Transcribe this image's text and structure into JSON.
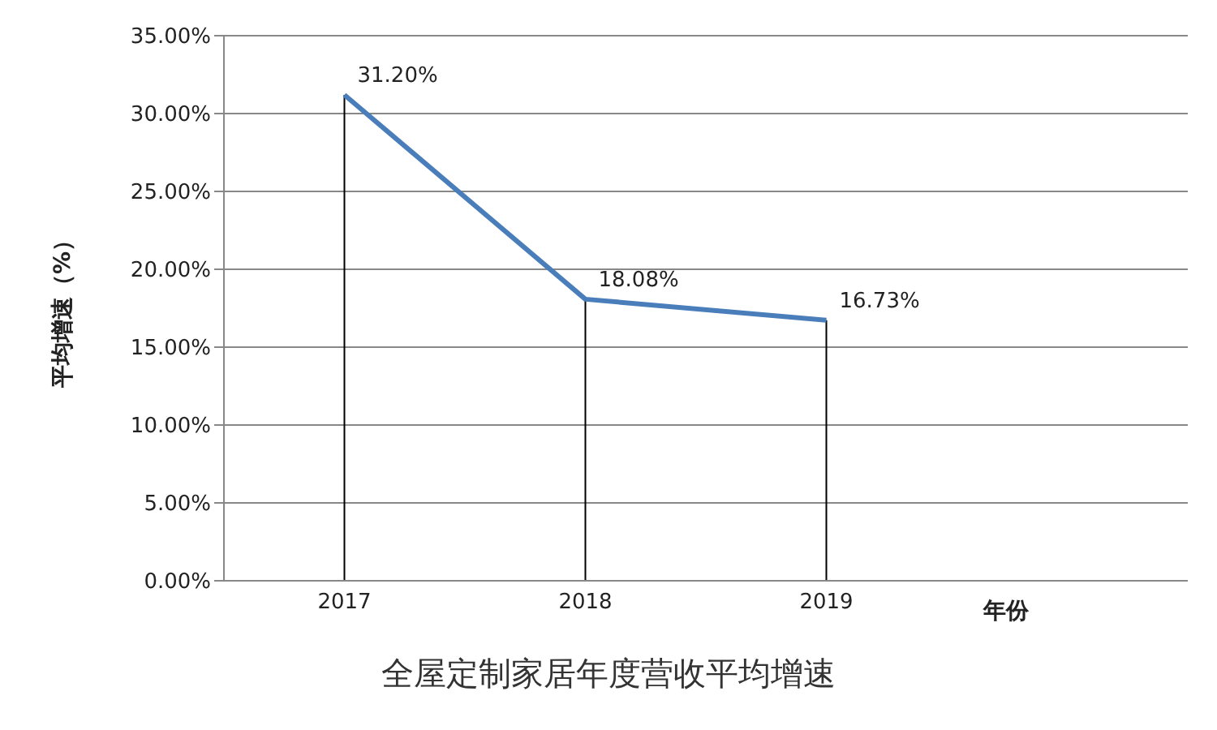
{
  "chart_data": {
    "type": "line",
    "title": "全屋定制家居年度营收平均增速",
    "xlabel": "年份",
    "ylabel": "平均增速（%）",
    "categories": [
      "2017",
      "2018",
      "2019",
      null
    ],
    "series": [
      {
        "color": "#4a7ebb",
        "values": [
          31.2,
          18.08,
          16.73,
          null
        ],
        "value_labels": [
          "31.20%",
          "18.08%",
          "16.73%",
          null
        ],
        "errors": [
          [
            0,
            31.2
          ],
          [
            0,
            18.08
          ],
          [
            0,
            16.73
          ],
          null
        ]
      }
    ],
    "ylim": [
      0,
      35
    ],
    "yticks": [
      {
        "value": 0,
        "label": "0.00%"
      },
      {
        "value": 5,
        "label": "5.00%"
      },
      {
        "value": 10,
        "label": "10.00%"
      },
      {
        "value": 15,
        "label": "15.00%"
      },
      {
        "value": 20,
        "label": "20.00%"
      },
      {
        "value": 25,
        "label": "25.00%"
      },
      {
        "value": 30,
        "label": "30.00%"
      },
      {
        "value": 35,
        "label": "35.00%"
      }
    ],
    "grid": "y",
    "legend": false,
    "marker": "none",
    "line_style": "solid"
  }
}
